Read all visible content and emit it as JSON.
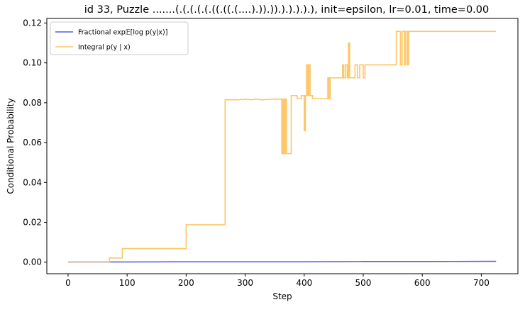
{
  "chart_data": {
    "type": "line",
    "title": "id 33, Puzzle .......(.(.(.(.(.((.((.(....).)).)).).).).).), init=epsilon, lr=0.01, time=0.00",
    "xlabel": "Step",
    "ylabel": "Conditional Probability",
    "xlim": [
      -36,
      762
    ],
    "ylim": [
      -0.0058,
      0.1223
    ],
    "xticks": [
      0,
      100,
      200,
      300,
      400,
      500,
      600,
      700
    ],
    "yticks": [
      0.0,
      0.02,
      0.04,
      0.06,
      0.08,
      0.1,
      0.12
    ],
    "ytick_labels": [
      "0.00",
      "0.02",
      "0.04",
      "0.06",
      "0.08",
      "0.10",
      "0.12"
    ],
    "grid": false,
    "legend_position": "upper left",
    "series": [
      {
        "name": "Fractional exp𝔼[log p(y|x)]",
        "color": "#5b5bd6",
        "points": [
          [
            0,
            0.0001
          ],
          [
            100,
            0.0001
          ],
          [
            200,
            0.0002
          ],
          [
            300,
            0.0002
          ],
          [
            400,
            0.0002
          ],
          [
            500,
            0.0003
          ],
          [
            600,
            0.0003
          ],
          [
            725,
            0.0004
          ]
        ]
      },
      {
        "name": "Integral p(y | x)",
        "color": "#fdc25e",
        "points": [
          [
            0,
            0.0002
          ],
          [
            70,
            0.0002
          ],
          [
            70,
            0.0021
          ],
          [
            92,
            0.0021
          ],
          [
            92,
            0.0068
          ],
          [
            200,
            0.0068
          ],
          [
            200,
            0.0188
          ],
          [
            266,
            0.0188
          ],
          [
            266,
            0.0815
          ],
          [
            290,
            0.0815
          ],
          [
            292,
            0.0818
          ],
          [
            295,
            0.0815
          ],
          [
            300,
            0.0818
          ],
          [
            310,
            0.0815
          ],
          [
            320,
            0.0818
          ],
          [
            330,
            0.0815
          ],
          [
            345,
            0.0818
          ],
          [
            362,
            0.0818
          ],
          [
            362,
            0.0545
          ],
          [
            364,
            0.0545
          ],
          [
            364,
            0.0818
          ],
          [
            366,
            0.0818
          ],
          [
            366,
            0.0545
          ],
          [
            368,
            0.0545
          ],
          [
            368,
            0.0818
          ],
          [
            370,
            0.0818
          ],
          [
            370,
            0.0545
          ],
          [
            378,
            0.0545
          ],
          [
            378,
            0.0836
          ],
          [
            388,
            0.0836
          ],
          [
            388,
            0.082
          ],
          [
            395,
            0.082
          ],
          [
            395,
            0.0836
          ],
          [
            400,
            0.0836
          ],
          [
            400,
            0.066
          ],
          [
            402,
            0.066
          ],
          [
            402,
            0.0836
          ],
          [
            404,
            0.0836
          ],
          [
            404,
            0.099
          ],
          [
            406,
            0.099
          ],
          [
            406,
            0.0836
          ],
          [
            408,
            0.0836
          ],
          [
            408,
            0.099
          ],
          [
            410,
            0.099
          ],
          [
            410,
            0.0836
          ],
          [
            414,
            0.0836
          ],
          [
            414,
            0.082
          ],
          [
            440,
            0.082
          ],
          [
            440,
            0.0925
          ],
          [
            442,
            0.0925
          ],
          [
            442,
            0.082
          ],
          [
            444,
            0.082
          ],
          [
            444,
            0.0925
          ],
          [
            465,
            0.0925
          ],
          [
            465,
            0.099
          ],
          [
            467,
            0.099
          ],
          [
            467,
            0.0925
          ],
          [
            470,
            0.0925
          ],
          [
            470,
            0.099
          ],
          [
            473,
            0.099
          ],
          [
            473,
            0.0925
          ],
          [
            475,
            0.0925
          ],
          [
            475,
            0.11
          ],
          [
            477,
            0.11
          ],
          [
            477,
            0.0925
          ],
          [
            486,
            0.0925
          ],
          [
            486,
            0.099
          ],
          [
            490,
            0.099
          ],
          [
            490,
            0.0925
          ],
          [
            494,
            0.0925
          ],
          [
            494,
            0.099
          ],
          [
            500,
            0.099
          ],
          [
            500,
            0.0925
          ],
          [
            503,
            0.0925
          ],
          [
            503,
            0.099
          ],
          [
            556,
            0.099
          ],
          [
            556,
            0.1158
          ],
          [
            563,
            0.1158
          ],
          [
            563,
            0.099
          ],
          [
            566,
            0.099
          ],
          [
            566,
            0.1158
          ],
          [
            570,
            0.1158
          ],
          [
            570,
            0.099
          ],
          [
            572,
            0.099
          ],
          [
            572,
            0.1158
          ],
          [
            575,
            0.1158
          ],
          [
            575,
            0.099
          ],
          [
            577,
            0.099
          ],
          [
            577,
            0.1158
          ],
          [
            725,
            0.1158
          ]
        ]
      }
    ]
  }
}
